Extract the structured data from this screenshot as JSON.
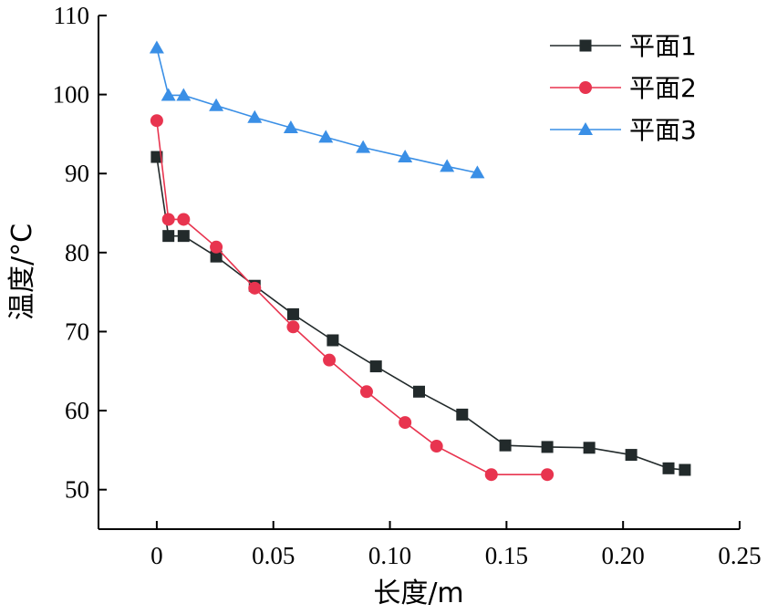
{
  "chart_data": {
    "type": "line",
    "title": "",
    "xlabel": "长度/m",
    "ylabel": "温度/°C",
    "xlim": [
      -0.025,
      0.25
    ],
    "ylim": [
      45,
      110
    ],
    "x_ticks": [
      0,
      0.05,
      0.1,
      0.15,
      0.2,
      0.25
    ],
    "x_tick_labels": [
      "0",
      "0.05",
      "0.10",
      "0.15",
      "0.20",
      "0.25"
    ],
    "y_ticks": [
      50,
      60,
      70,
      80,
      90,
      100,
      110
    ],
    "y_tick_labels": [
      "50",
      "60",
      "70",
      "80",
      "90",
      "100",
      "110"
    ],
    "grid": false,
    "legend_position": "top-right",
    "series": [
      {
        "name": "平面1",
        "color": "#222a2b",
        "marker": "square",
        "x": [
          0,
          0.005,
          0.0115,
          0.0255,
          0.042,
          0.0585,
          0.0755,
          0.094,
          0.1125,
          0.131,
          0.1495,
          0.1675,
          0.1855,
          0.2035,
          0.2195,
          0.2265
        ],
        "y": [
          92.1,
          82.1,
          82.1,
          79.5,
          75.8,
          72.2,
          68.9,
          65.6,
          62.4,
          59.5,
          55.6,
          55.4,
          55.3,
          54.4,
          52.7,
          52.5
        ]
      },
      {
        "name": "平面2",
        "color": "#e8344f",
        "marker": "circle",
        "x": [
          0,
          0.005,
          0.0115,
          0.0255,
          0.042,
          0.0585,
          0.074,
          0.09,
          0.1065,
          0.12,
          0.1435,
          0.1675
        ],
        "y": [
          96.7,
          84.2,
          84.2,
          80.7,
          75.5,
          70.6,
          66.4,
          62.4,
          58.5,
          55.5,
          51.9,
          51.9
        ]
      },
      {
        "name": "平面3",
        "color": "#3a8fe6",
        "marker": "triangle",
        "x": [
          0,
          0.005,
          0.0115,
          0.0255,
          0.042,
          0.0575,
          0.0725,
          0.0885,
          0.1065,
          0.1245,
          0.1375
        ],
        "y": [
          105.9,
          99.9,
          99.9,
          98.6,
          97.1,
          95.8,
          94.6,
          93.3,
          92.1,
          90.9,
          90.1
        ]
      }
    ]
  }
}
